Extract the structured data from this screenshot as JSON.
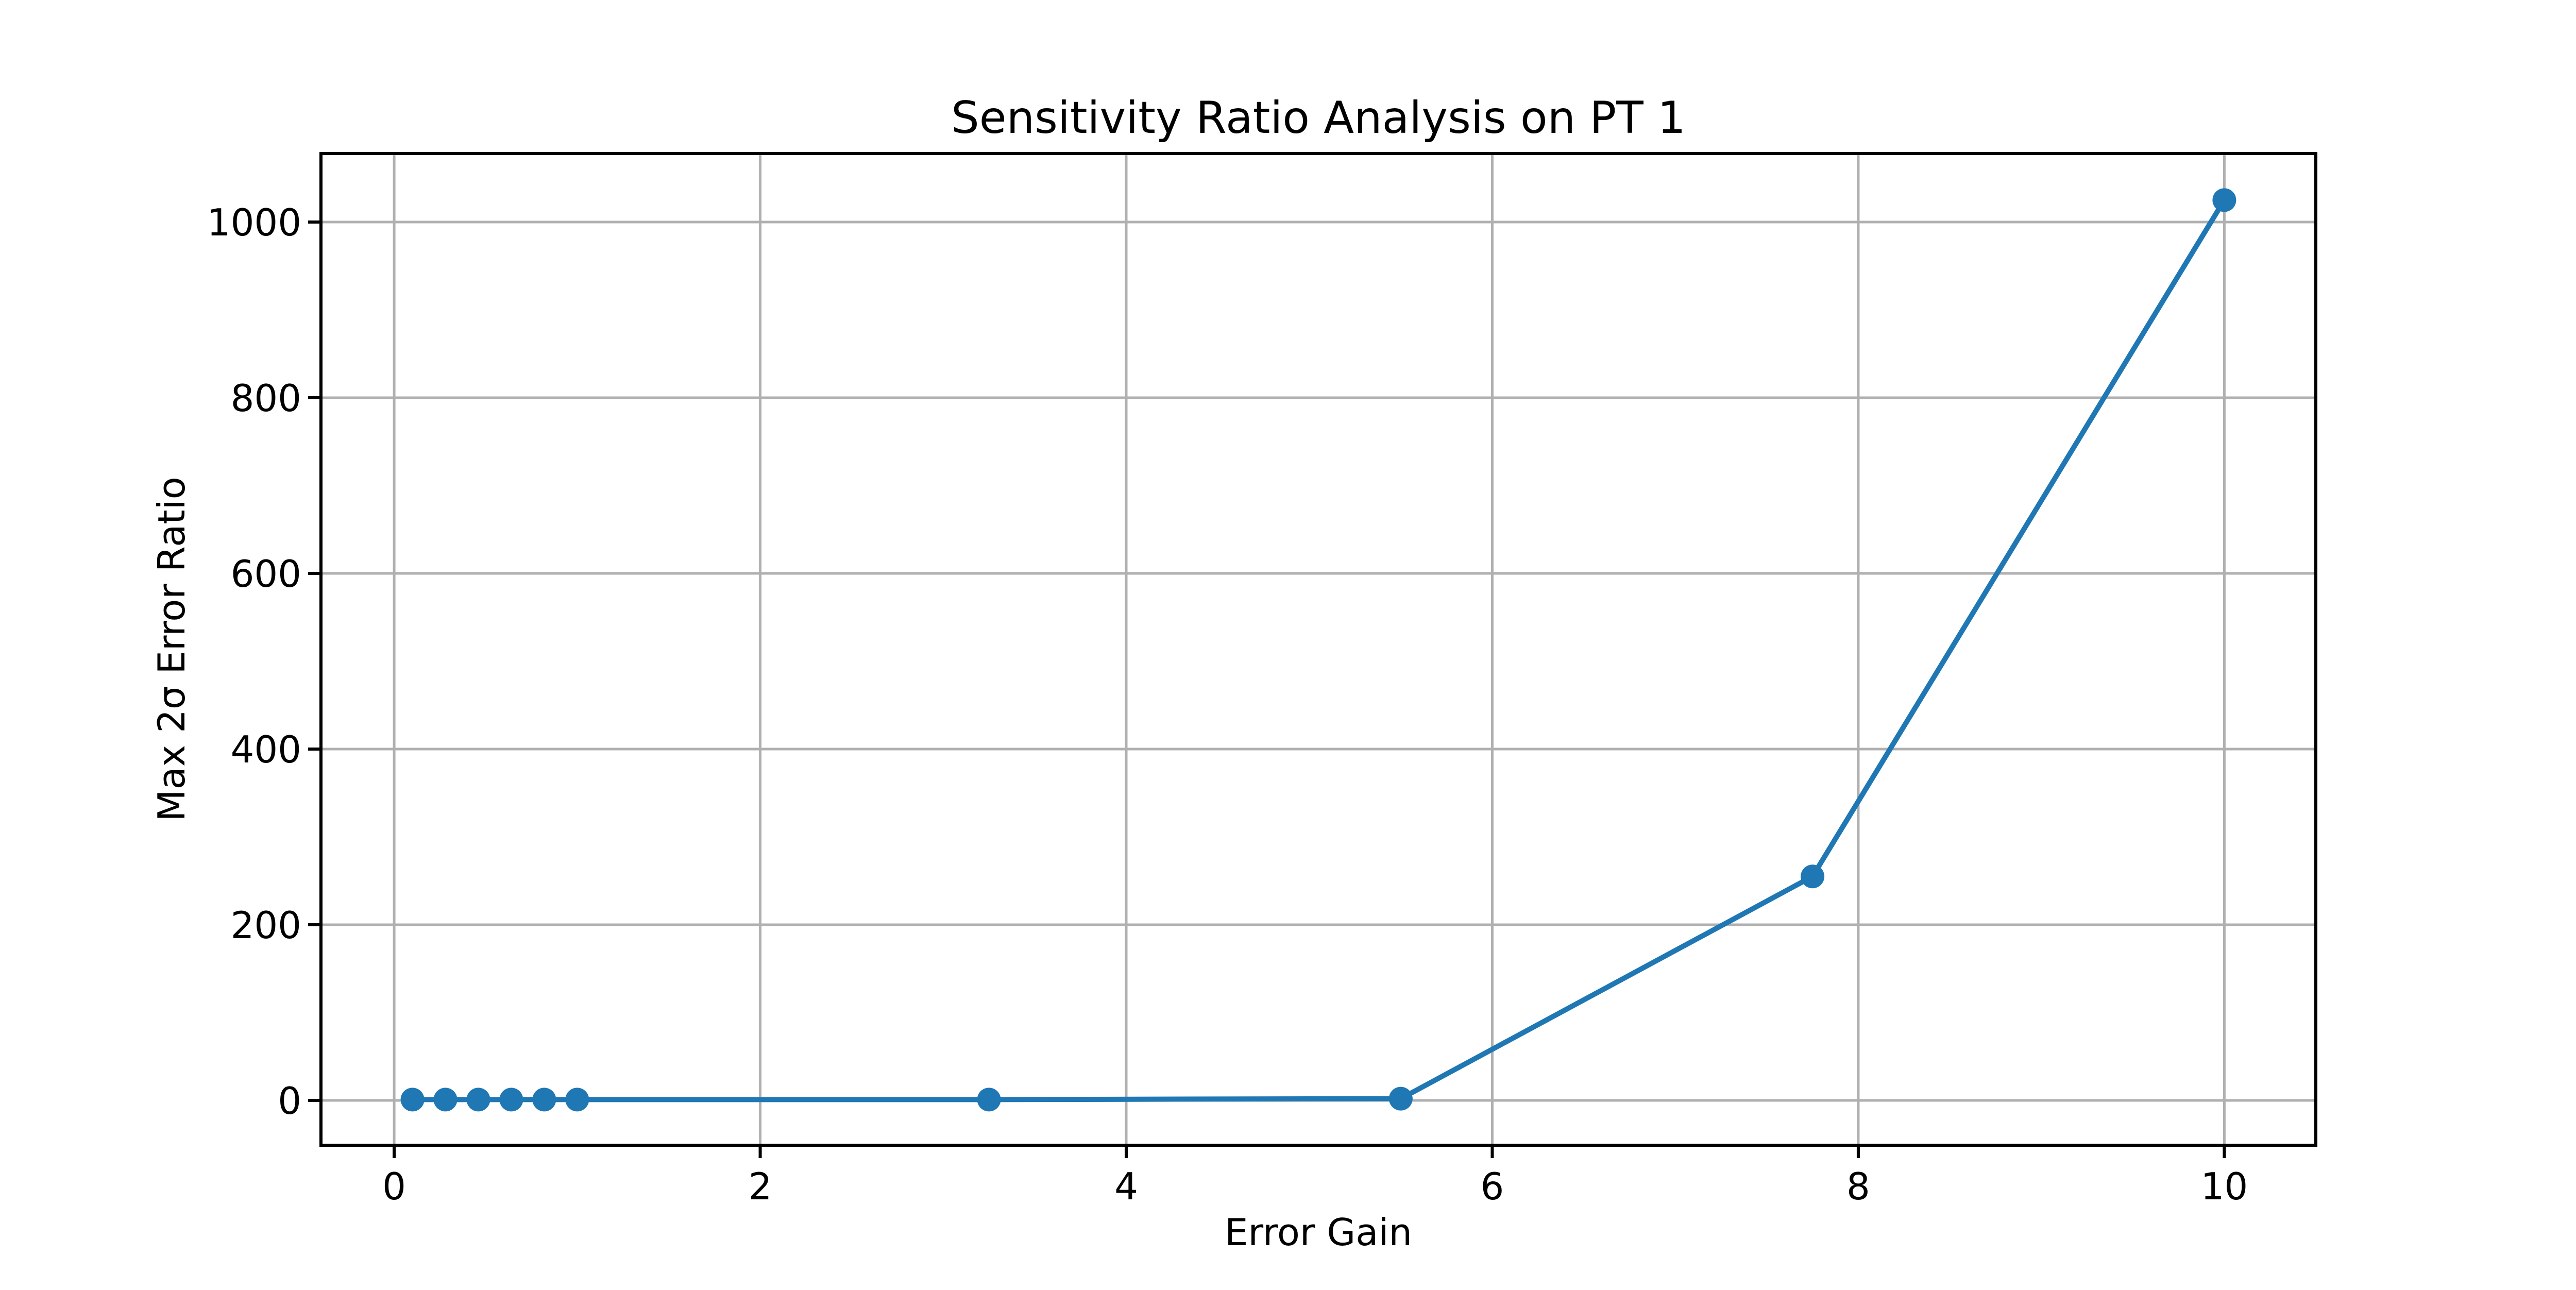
{
  "chart_data": {
    "type": "line",
    "title": "Sensitivity Ratio Analysis on PT 1",
    "xlabel": "Error Gain",
    "ylabel": "Max 2σ Error Ratio",
    "series": [
      {
        "name": "sensitivity-ratio",
        "x": [
          0.1,
          0.28,
          0.46,
          0.64,
          0.82,
          1.0,
          3.25,
          5.5,
          7.75,
          10.0
        ],
        "y": [
          1,
          1,
          1,
          1,
          1,
          1,
          1,
          2,
          255,
          1025
        ]
      }
    ],
    "xticks": [
      "0",
      "2",
      "4",
      "6",
      "8",
      "10"
    ],
    "xtick_values": [
      0,
      2,
      4,
      6,
      8,
      10
    ],
    "yticks": [
      "0",
      "200",
      "400",
      "600",
      "800",
      "1000"
    ],
    "ytick_values": [
      0,
      200,
      400,
      600,
      800,
      1000
    ],
    "xlim": [
      -0.4,
      10.5
    ],
    "ylim": [
      -51,
      1078
    ],
    "grid": true,
    "legend": "none",
    "colors": {
      "line": "#1f77b4",
      "marker": "#1f77b4",
      "grid": "#b0b0b0",
      "spine": "#000000",
      "background": "#ffffff"
    }
  }
}
